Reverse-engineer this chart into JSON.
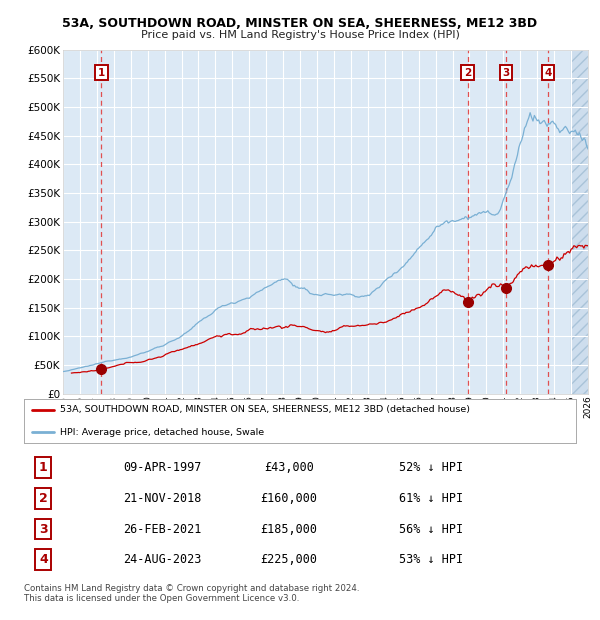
{
  "title": "53A, SOUTHDOWN ROAD, MINSTER ON SEA, SHEERNESS, ME12 3BD",
  "subtitle": "Price paid vs. HM Land Registry's House Price Index (HPI)",
  "bg_color": "#dce9f5",
  "grid_color": "#ffffff",
  "red_line_color": "#cc0000",
  "blue_line_color": "#7ab0d4",
  "dashed_color": "#e05050",
  "sale_points": [
    {
      "date_num": 1997.27,
      "value": 43000,
      "label": "1"
    },
    {
      "date_num": 2018.89,
      "value": 160000,
      "label": "2"
    },
    {
      "date_num": 2021.15,
      "value": 185000,
      "label": "3"
    },
    {
      "date_num": 2023.65,
      "value": 225000,
      "label": "4"
    }
  ],
  "ylim": [
    0,
    600000
  ],
  "xlim": [
    1995.0,
    2026.0
  ],
  "yticks": [
    0,
    50000,
    100000,
    150000,
    200000,
    250000,
    300000,
    350000,
    400000,
    450000,
    500000,
    550000,
    600000
  ],
  "ytick_labels": [
    "£0",
    "£50K",
    "£100K",
    "£150K",
    "£200K",
    "£250K",
    "£300K",
    "£350K",
    "£400K",
    "£450K",
    "£500K",
    "£550K",
    "£600K"
  ],
  "xticks": [
    1995,
    1996,
    1997,
    1998,
    1999,
    2000,
    2001,
    2002,
    2003,
    2004,
    2005,
    2006,
    2007,
    2008,
    2009,
    2010,
    2011,
    2012,
    2013,
    2014,
    2015,
    2016,
    2017,
    2018,
    2019,
    2020,
    2021,
    2022,
    2023,
    2024,
    2025,
    2026
  ],
  "legend_red_label": "53A, SOUTHDOWN ROAD, MINSTER ON SEA, SHEERNESS, ME12 3BD (detached house)",
  "legend_blue_label": "HPI: Average price, detached house, Swale",
  "table_rows": [
    {
      "num": "1",
      "date": "09-APR-1997",
      "price": "£43,000",
      "hpi": "52% ↓ HPI"
    },
    {
      "num": "2",
      "date": "21-NOV-2018",
      "price": "£160,000",
      "hpi": "61% ↓ HPI"
    },
    {
      "num": "3",
      "date": "26-FEB-2021",
      "price": "£185,000",
      "hpi": "56% ↓ HPI"
    },
    {
      "num": "4",
      "date": "24-AUG-2023",
      "price": "£225,000",
      "hpi": "53% ↓ HPI"
    }
  ],
  "footer": "Contains HM Land Registry data © Crown copyright and database right 2024.\nThis data is licensed under the Open Government Licence v3.0.",
  "hatch_start": 2025.0
}
